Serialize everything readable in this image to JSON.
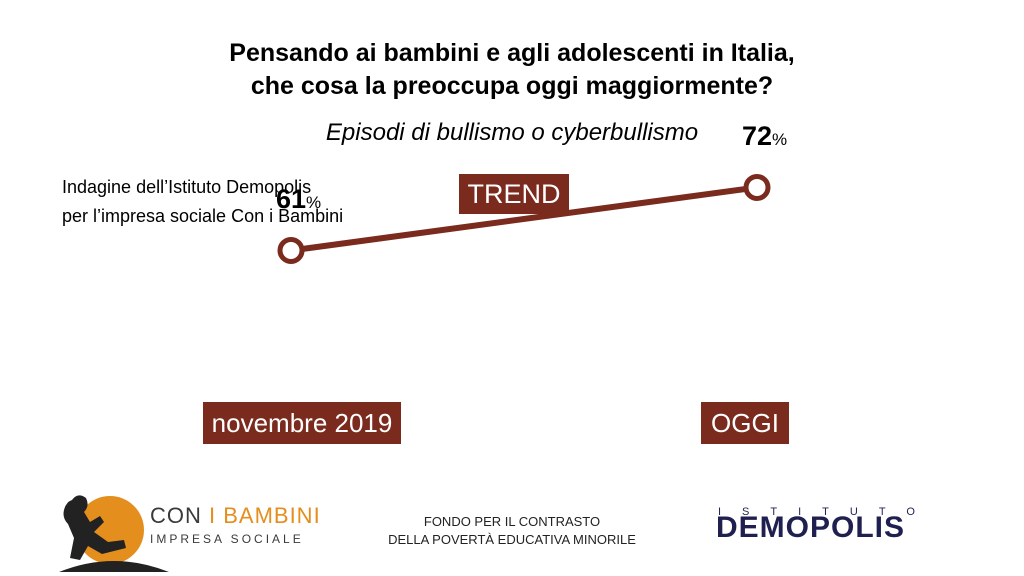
{
  "header": {
    "title_line1": "Pensando ai bambini e agli adolescenti in Italia,",
    "title_line2": "che cosa la preoccupa oggi maggiormente?",
    "subtitle": "Episodi di bullismo o cyberbullismo"
  },
  "source": {
    "line1": "Indagine dell’Istituto Demopolis",
    "line2": "per l’impresa sociale Con i Bambini"
  },
  "badge": "TREND",
  "chart_data": {
    "type": "line",
    "categories": [
      "novembre 2019",
      "OGGI"
    ],
    "values": [
      61,
      72
    ],
    "value_labels": [
      "61",
      "72"
    ],
    "unit": "%",
    "color": "#7b2a1e",
    "ylim": [
      0,
      100
    ]
  },
  "footer": {
    "left_logo_1a": "CON ",
    "left_logo_1b": "I BAMBINI",
    "left_logo_2": "IMPRESA SOCIALE",
    "center_line1": "FONDO PER IL CONTRASTO",
    "center_line2": "DELLA POVERTÀ EDUCATIVA MINORILE",
    "right_top": "ISTITUTO",
    "right_main": "DEMOPOLIS"
  },
  "colors": {
    "accent": "#7b2a1e",
    "orange": "#e48e1e",
    "navy": "#1f2050"
  }
}
